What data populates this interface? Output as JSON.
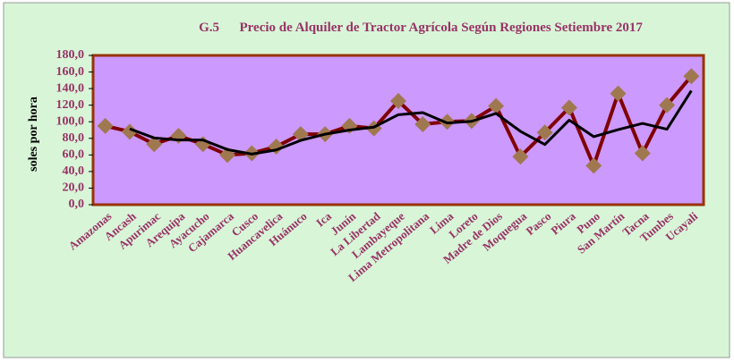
{
  "chart_data": {
    "type": "line",
    "title": "G.5      Precio de Alquiler de Tractor Agrícola Según Regiones Setiembre 2017",
    "y_label": "soles por hora",
    "categories": [
      "Amazonas",
      "Ancash",
      "Apurimac",
      "Arequipa",
      "Ayacucho",
      "Cajamarca",
      "Cusco",
      "Huancavelica",
      "Huánuco",
      "Ica",
      "Junín",
      "La Libertad",
      "Lambayeque",
      "Lima Metropolitana",
      "Lima",
      "Loreto",
      "Madre de Dios",
      "Moquegua",
      "Pasco",
      "Piura",
      "Puno",
      "San Martín",
      "Tacna",
      "Tumbes",
      "Ucayali"
    ],
    "series": [
      {
        "color": "#800000",
        "marker_color": "#a07850",
        "values": [
          95,
          88,
          73,
          83,
          73,
          60,
          62,
          70,
          85,
          85,
          95,
          92,
          125,
          97,
          100,
          101,
          119,
          58,
          87,
          117,
          47,
          134,
          62,
          120,
          155
        ]
      },
      {
        "color": "#000000",
        "values": [
          null,
          91.5,
          80.5,
          78,
          78,
          66.5,
          61,
          66,
          77.5,
          85,
          90,
          93.5,
          108.5,
          111,
          98.5,
          100.5,
          110,
          88.5,
          72.5,
          102,
          82,
          90.5,
          98,
          91,
          137.5
        ]
      }
    ],
    "ylim": [
      0,
      180
    ],
    "yticks": [
      {
        "value": 0,
        "label": "0,0"
      },
      {
        "value": 20,
        "label": "20,0"
      },
      {
        "value": 40,
        "label": "40,0"
      },
      {
        "value": 60,
        "label": "60,0"
      },
      {
        "value": 80,
        "label": "80,0"
      },
      {
        "value": 100,
        "label": "100,0"
      },
      {
        "value": 120,
        "label": "120,0"
      },
      {
        "value": 140,
        "label": "140,0"
      },
      {
        "value": 160,
        "label": "160,0"
      },
      {
        "value": 180,
        "label": "180,0"
      }
    ],
    "grid": false,
    "plot_color": "#cc99ff",
    "background_color": "#d8f5d8"
  }
}
